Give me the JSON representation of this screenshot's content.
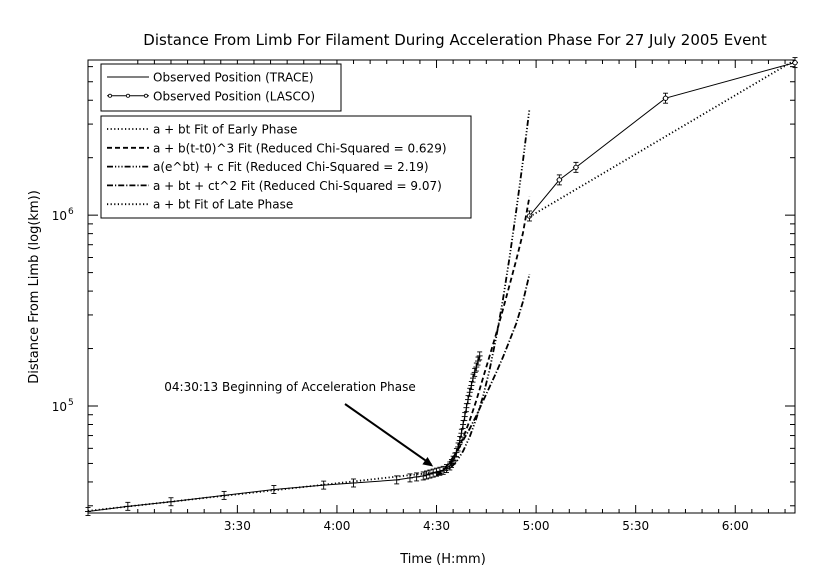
{
  "chart_data": {
    "type": "line",
    "title": "Distance From Limb For Filament During Acceleration Phase For 27 July 2005 Event",
    "xlabel": "Time (H:mm)",
    "ylabel": "Distance From Limb (log(km))",
    "x_unit": "minutes after 3:00",
    "xlim": [
      -15,
      198
    ],
    "ylim": [
      27500,
      6500000
    ],
    "y_scale": "log",
    "x_ticks": [
      {
        "value": 30,
        "label": "3:30"
      },
      {
        "value": 60,
        "label": "4:00"
      },
      {
        "value": 90,
        "label": "4:30"
      },
      {
        "value": 120,
        "label": "5:00"
      },
      {
        "value": 150,
        "label": "5:30"
      },
      {
        "value": 180,
        "label": "6:00"
      }
    ],
    "y_ticks": [
      {
        "value": 100000,
        "label": "10^5",
        "base": "10",
        "exp": "5"
      },
      {
        "value": 1000000,
        "label": "10^6",
        "base": "10",
        "exp": "6"
      }
    ],
    "grid": false,
    "legend_position": "top-left",
    "legends": [
      {
        "items": [
          {
            "label": "Observed Position (TRACE)",
            "dash": "",
            "marker": false
          },
          {
            "label": "Observed Position (LASCO)",
            "dash": "",
            "marker": true
          }
        ]
      },
      {
        "items": [
          {
            "label": "a + bt Fit of Early Phase",
            "dash": "1.2,2.4",
            "marker": false
          },
          {
            "label": "a + b(t-t0)^3 Fit (Reduced Chi-Squared = 0.629)",
            "dash": "5,3",
            "marker": false
          },
          {
            "label": "a(e^bt) + c Fit (Reduced Chi-Squared = 2.19)",
            "dash": "6,2,1.2,2,1.2,2,1.2,2",
            "marker": false
          },
          {
            "label": "a + bt + ct^2 Fit (Reduced Chi-Squared = 9.07)",
            "dash": "6,2,1.2,2",
            "marker": false
          },
          {
            "label": "a + bt Fit of Late Phase",
            "dash": "1.2,2.4",
            "marker": false
          }
        ]
      }
    ],
    "series": [
      {
        "name": "Observed Position (TRACE)",
        "style": "solid",
        "errorbars": true,
        "x": [
          -15,
          -3,
          10,
          26,
          41,
          56,
          65,
          78,
          82,
          84,
          86,
          87,
          88,
          89,
          90,
          91,
          92,
          93,
          94,
          94.5,
          95,
          95.5,
          96,
          96.5,
          97,
          97.5,
          98,
          98.5,
          99,
          99.5,
          100,
          100.5,
          101,
          101.5,
          102,
          102.5,
          103
        ],
        "y": [
          28000,
          29800,
          31500,
          34000,
          36500,
          38500,
          39500,
          41000,
          42000,
          42500,
          43000,
          43500,
          44000,
          44500,
          45000,
          45500,
          46000,
          47000,
          48500,
          50000,
          52000,
          54000,
          57000,
          61000,
          66000,
          72000,
          80000,
          88000,
          98000,
          108000,
          118000,
          128000,
          140000,
          150000,
          160000,
          172000,
          183000
        ]
      },
      {
        "name": "Observed Position (LASCO)",
        "style": "solid-marker",
        "errorbars": true,
        "x": [
          118,
          127,
          132,
          159,
          198
        ],
        "y": [
          990000,
          1530000,
          1780000,
          4100000,
          6300000
        ]
      },
      {
        "name": "a + bt Fit of Early Phase",
        "style": "dotted",
        "x": [
          -15,
          90
        ],
        "y": [
          28200,
          45000
        ]
      },
      {
        "name": "a + b(t-t0)^3 Fit (Reduced Chi-Squared = 0.629)",
        "style": "dashed",
        "x": [
          90,
          92,
          94,
          96,
          98,
          100,
          102,
          104,
          106,
          108,
          110,
          112,
          114,
          116,
          118
        ],
        "y": [
          44500,
          46000,
          50000,
          57000,
          68000,
          84000,
          107000,
          140000,
          183000,
          240000,
          320000,
          430000,
          580000,
          800000,
          1250000
        ]
      },
      {
        "name": "a(e^bt) + c Fit (Reduced Chi-Squared = 2.19)",
        "style": "dash-dot-dot-dot",
        "x": [
          90,
          92,
          94,
          96,
          98,
          100,
          102,
          104,
          106,
          108,
          110,
          112,
          114,
          116,
          118
        ],
        "y": [
          43500,
          44500,
          47000,
          51000,
          58000,
          69000,
          86000,
          112000,
          155000,
          230000,
          360000,
          600000,
          1050000,
          1900000,
          3600000
        ]
      },
      {
        "name": "a + bt + ct^2 Fit (Reduced Chi-Squared = 9.07)",
        "style": "dash-dot",
        "x": [
          90,
          92,
          94,
          96,
          98,
          100,
          102,
          104,
          106,
          108,
          110,
          112,
          114,
          116,
          118
        ],
        "y": [
          43000,
          46000,
          51000,
          57000,
          66000,
          76000,
          89000,
          106000,
          126000,
          150000,
          180000,
          220000,
          270000,
          350000,
          490000
        ]
      },
      {
        "name": "a + bt Fit of Late Phase",
        "style": "dotted",
        "x": [
          118,
          198
        ],
        "y": [
          980000,
          6500000
        ]
      }
    ],
    "annotations": [
      {
        "text": "04:30:13 Beginning of Acceleration Phase",
        "x": 90.2,
        "y": 46500
      }
    ]
  }
}
